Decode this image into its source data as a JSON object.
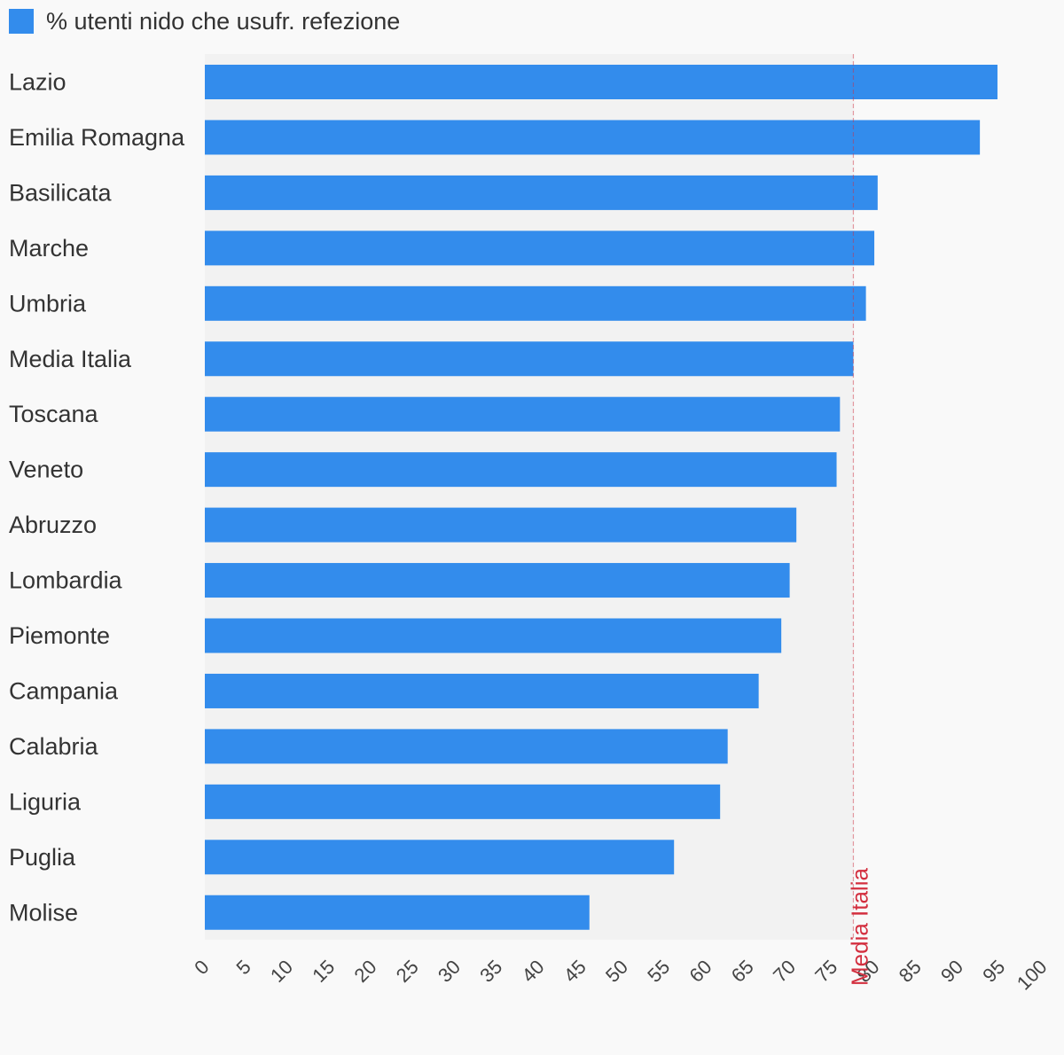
{
  "chart_data": {
    "type": "bar",
    "orientation": "horizontal",
    "series": [
      {
        "name": "% utenti nido che usufr. refezione",
        "color": "#338cec",
        "values": [
          94.6,
          92.5,
          80.3,
          79.9,
          78.9,
          77.4,
          75.8,
          75.4,
          70.6,
          69.8,
          68.8,
          66.1,
          62.4,
          61.5,
          56.0,
          45.9
        ]
      }
    ],
    "categories": [
      "Lazio",
      "Emilia Romagna",
      "Basilicata",
      "Marche",
      "Umbria",
      "Media Italia",
      "Toscana",
      "Veneto",
      "Abruzzo",
      "Lombardia",
      "Piemonte",
      "Campania",
      "Calabria",
      "Liguria",
      "Puglia",
      "Molise"
    ],
    "xlim": [
      0,
      100
    ],
    "x_ticks": [
      "0",
      "5",
      "10",
      "15",
      "20",
      "25",
      "30",
      "35",
      "40",
      "45",
      "50",
      "55",
      "60",
      "65",
      "70",
      "75",
      "80",
      "85",
      "90",
      "95",
      "100"
    ],
    "reference_line": {
      "label": "Media Italia",
      "value": 77.4,
      "color": "#d32f3f"
    },
    "plot_background": "#f2f2f2",
    "page_background": "#f9f9f9",
    "legend_position": "top-left",
    "grid": false
  }
}
